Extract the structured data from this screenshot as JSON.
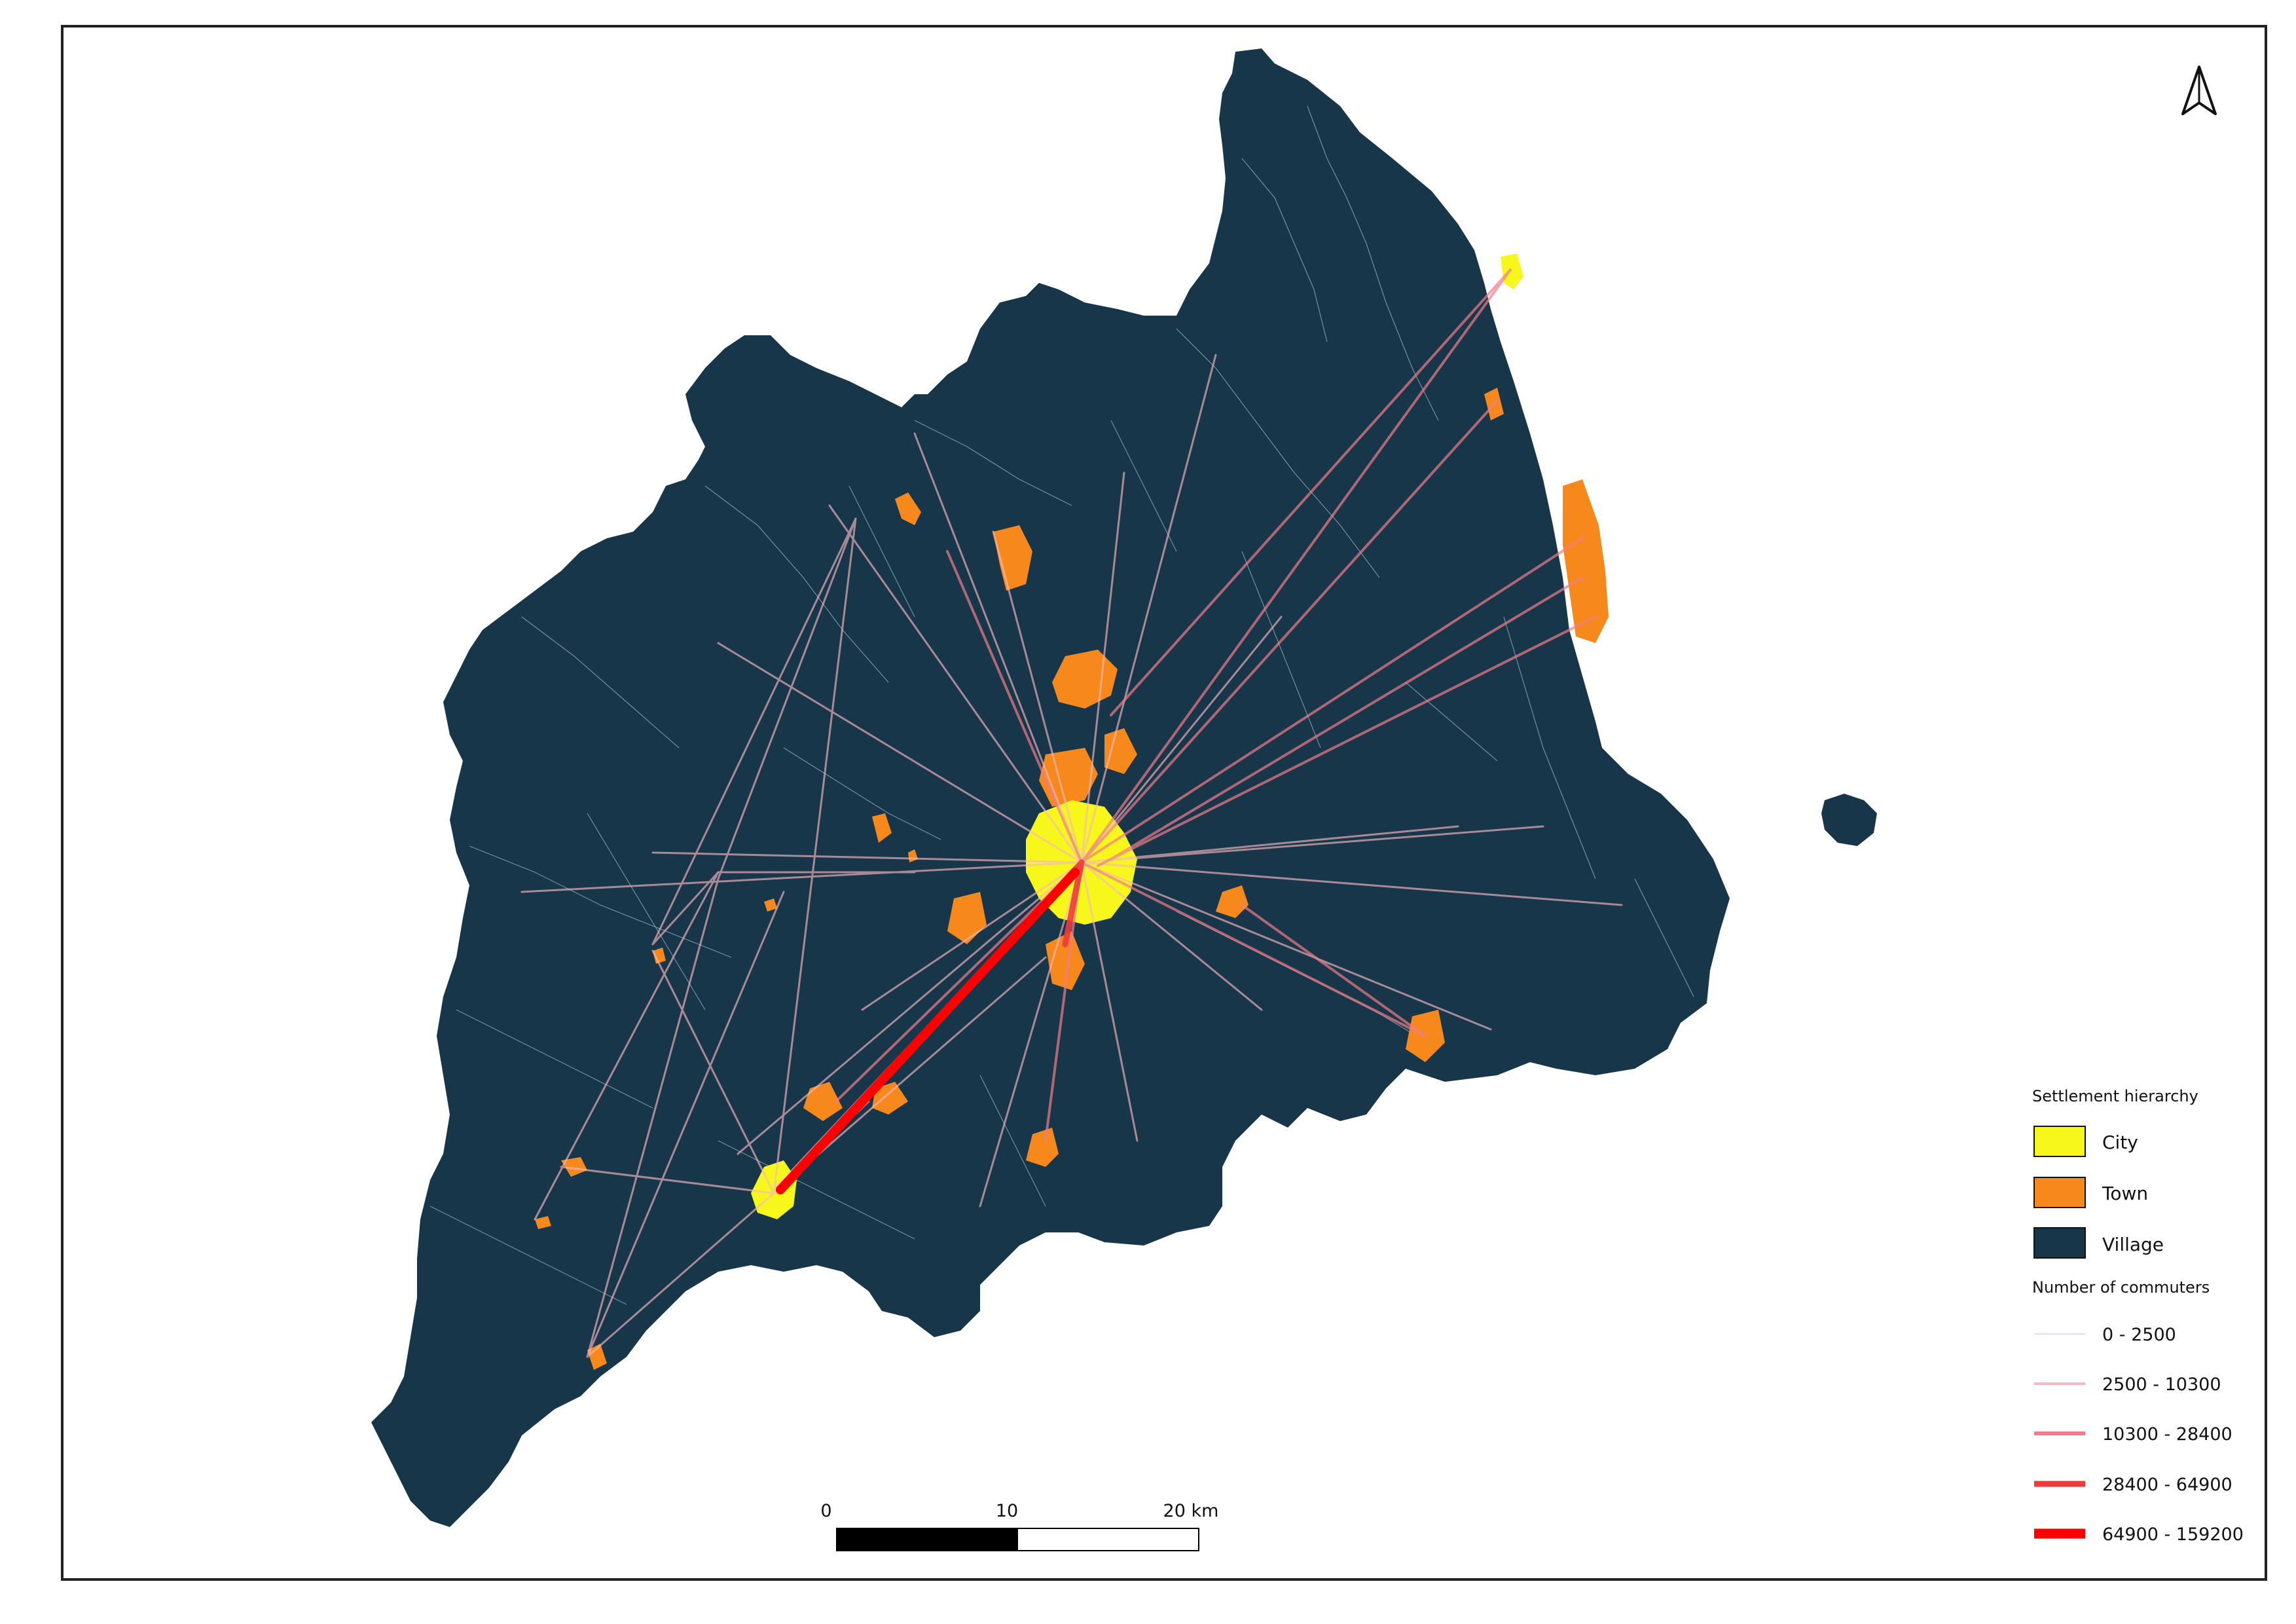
{
  "map": {
    "colors": {
      "city": "#f7f71c",
      "town": "#f7891c",
      "village": "#18364a",
      "boundary": "#c9d6e0",
      "flow_light": "#f5c9cf",
      "flow_mid": "#f08a96",
      "flow_strong": "#f03a3a",
      "flow_max": "#ff0000"
    },
    "north_arrow_icon": "north-arrow-icon"
  },
  "legend": {
    "settlement_title": "Settlement hierarchy",
    "settlement_items": [
      {
        "label": "City",
        "color": "#f7f71c"
      },
      {
        "label": "Town",
        "color": "#f7891c"
      },
      {
        "label": "Village",
        "color": "#18364a"
      }
    ],
    "commuters_title": "Number of commuters",
    "commuter_classes": [
      {
        "label": "0 - 2500",
        "color": "#f5dadd"
      },
      {
        "label": "2500 - 10300",
        "color": "#f6b8c0"
      },
      {
        "label": "10300 - 28400",
        "color": "#f07d89"
      },
      {
        "label": "28400 - 64900",
        "color": "#f03a3a"
      },
      {
        "label": "64900 - 159200",
        "color": "#ff0000"
      }
    ]
  },
  "scalebar": {
    "labels": [
      "0",
      "10",
      "20 km"
    ]
  }
}
